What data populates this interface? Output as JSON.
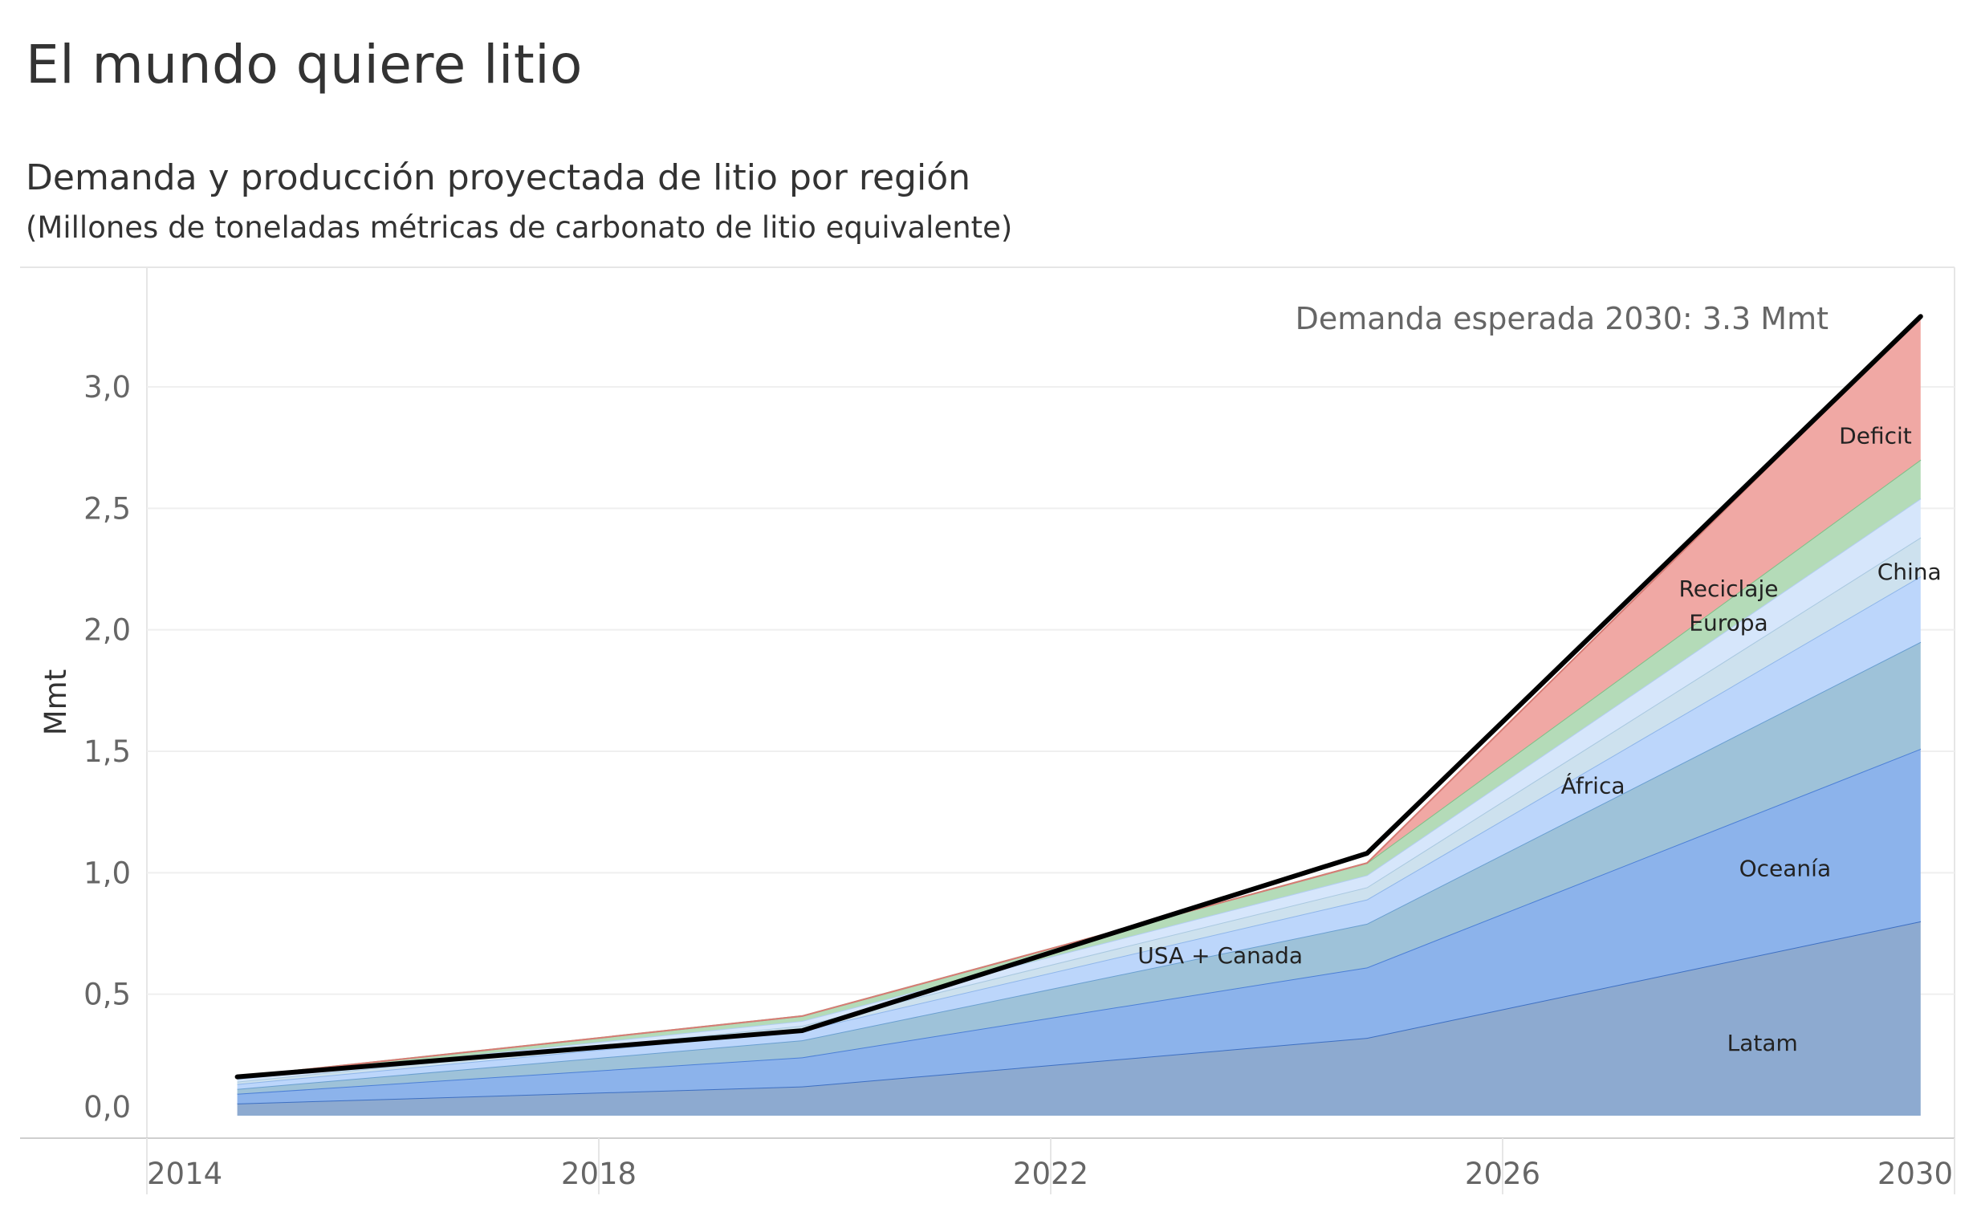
{
  "header": {
    "title": "El mundo quiere litio",
    "subtitle": "Demanda y producción proyectada de litio por región",
    "units": "(Millones de toneladas métricas de carbonato de litio equivalente)"
  },
  "chart_data": {
    "type": "area",
    "stacked": true,
    "ylabel": "Mmt",
    "xlim": [
      2014,
      2030
    ],
    "ylim": [
      -0.05,
      3.45
    ],
    "x_ticks": [
      "2014",
      "2018",
      "2022",
      "2026",
      "2030"
    ],
    "y_ticks": [
      "0,0",
      "0,5",
      "1,0",
      "1,5",
      "2,0",
      "2,5",
      "3,0"
    ],
    "y_tick_values": [
      0,
      0.5,
      1.0,
      1.5,
      2.0,
      2.5,
      3.0
    ],
    "x": [
      2014.8,
      2019.8,
      2024.8,
      2029.7
    ],
    "series": [
      {
        "name": "Latam",
        "label": "Latam",
        "values": [
          0.05,
          0.12,
          0.32,
          0.8
        ],
        "color": "#8daad0",
        "stroke": "#3d6fc2"
      },
      {
        "name": "Oceanía",
        "label": "Oceanía",
        "values": [
          0.04,
          0.12,
          0.29,
          0.71
        ],
        "color": "#8cb3eb",
        "stroke": "#4b7fd6"
      },
      {
        "name": "USA + Canada",
        "label": "USA + Canada",
        "values": [
          0.02,
          0.07,
          0.18,
          0.44
        ],
        "color": "#9ec2d9",
        "stroke": "#6a9fd0"
      },
      {
        "name": "África",
        "label": "África",
        "values": [
          0.02,
          0.04,
          0.1,
          0.27
        ],
        "color": "#bcd6fb",
        "stroke": "#8fb6ea"
      },
      {
        "name": "China",
        "label": "China",
        "values": [
          0.01,
          0.02,
          0.05,
          0.16
        ],
        "color": "#cde1ee",
        "stroke": "#a9c8e0"
      },
      {
        "name": "Europa",
        "label": "Europa",
        "values": [
          0.01,
          0.02,
          0.05,
          0.16
        ],
        "color": "#d6e6fb",
        "stroke": "#b2cdf0"
      },
      {
        "name": "Reciclaje",
        "label": "Reciclaje",
        "values": [
          0.01,
          0.02,
          0.05,
          0.16
        ],
        "color": "#b4dbb8",
        "stroke": "#7fbf88"
      },
      {
        "name": "Deficit",
        "label": "Deficit",
        "values": [
          0.0,
          0.0,
          0.0,
          0.59
        ],
        "color": "#f0a8a4",
        "stroke": "#d77b74"
      }
    ],
    "demand_line": {
      "name": "Demanda",
      "values": [
        0.16,
        0.35,
        1.08,
        3.29
      ],
      "color": "#000000"
    },
    "annotation": "Demanda esperada 2030: 3.3 Mmt"
  }
}
